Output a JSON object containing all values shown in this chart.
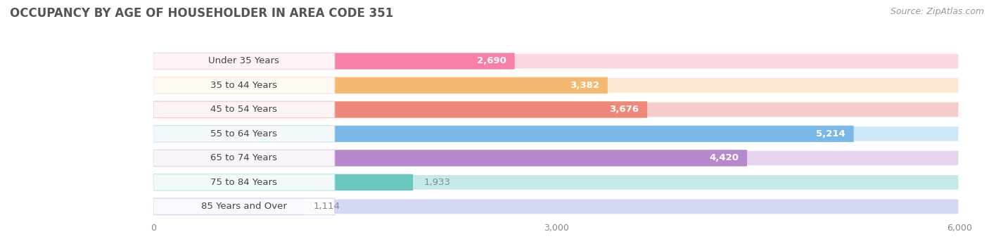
{
  "title": "OCCUPANCY BY AGE OF HOUSEHOLDER IN AREA CODE 351",
  "source": "Source: ZipAtlas.com",
  "categories": [
    "Under 35 Years",
    "35 to 44 Years",
    "45 to 54 Years",
    "55 to 64 Years",
    "65 to 74 Years",
    "75 to 84 Years",
    "85 Years and Over"
  ],
  "values": [
    2690,
    3382,
    3676,
    5214,
    4420,
    1933,
    1114
  ],
  "bar_colors": [
    "#F880A8",
    "#F5B870",
    "#EF8878",
    "#7AB8E8",
    "#B888CC",
    "#68C8C0",
    "#AABCE8"
  ],
  "bar_bg_colors": [
    "#FBD8E0",
    "#FAE8D0",
    "#F6CCC8",
    "#CCE8F8",
    "#E4D4EE",
    "#C4EAE8",
    "#D4D8F2"
  ],
  "value_colors_inside": [
    "#ffffff",
    "#ffffff",
    "#ffffff",
    "#ffffff",
    "#ffffff",
    "#888888",
    "#888888"
  ],
  "value_threshold": 2500,
  "xlim": [
    0,
    6000
  ],
  "xticks": [
    0,
    3000,
    6000
  ],
  "title_fontsize": 12,
  "source_fontsize": 9,
  "label_fontsize": 9.5,
  "value_fontsize": 9.5,
  "background_color": "#ffffff",
  "bar_height": 0.68,
  "bar_spacing": 1.0
}
